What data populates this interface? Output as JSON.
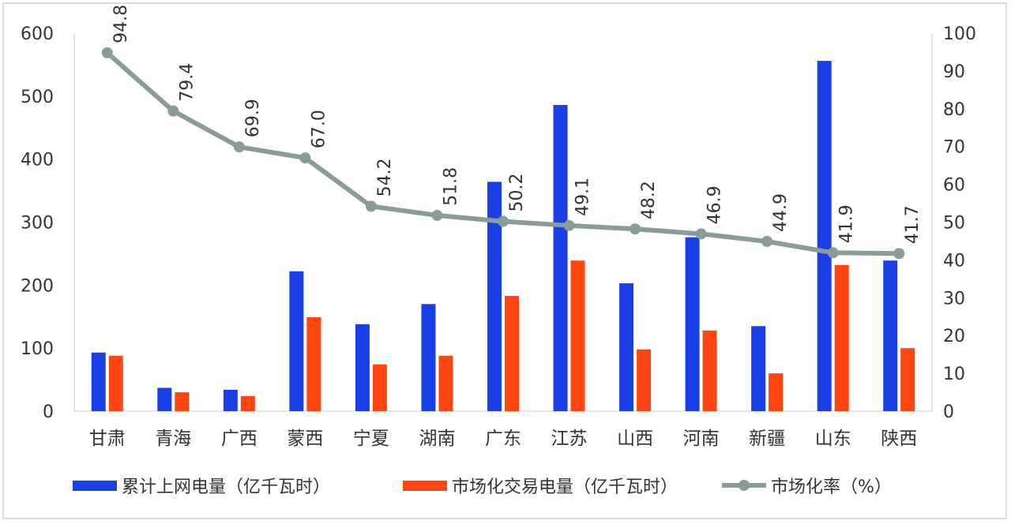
{
  "chart_data": {
    "type": "bar",
    "categories": [
      "甘肃",
      "青海",
      "广西",
      "蒙西",
      "宁夏",
      "湖南",
      "广东",
      "江苏",
      "山西",
      "河南",
      "新疆",
      "山东",
      "陕西"
    ],
    "series": [
      {
        "name": "累计上网电量（亿千瓦时）",
        "type": "bar",
        "axis": "left",
        "color": "#1a3fe6",
        "values": [
          93,
          37,
          34,
          222,
          138,
          170,
          364,
          486,
          203,
          276,
          135,
          556,
          239
        ]
      },
      {
        "name": "市场化交易电量（亿千瓦时）",
        "type": "bar",
        "axis": "left",
        "color": "#ff4512",
        "values": [
          88,
          30,
          24,
          149,
          74,
          88,
          183,
          239,
          98,
          128,
          60,
          232,
          100
        ]
      },
      {
        "name": "市场化率（%）",
        "type": "line",
        "axis": "right",
        "color": "#8a9c9a",
        "values": [
          94.8,
          79.4,
          69.9,
          67.0,
          54.2,
          51.8,
          50.2,
          49.1,
          48.2,
          46.9,
          44.9,
          41.9,
          41.7
        ],
        "labels": [
          "94.8",
          "79.4",
          "69.9",
          "67.0",
          "54.2",
          "51.8",
          "50.2",
          "49.1",
          "48.2",
          "46.9",
          "44.9",
          "41.9",
          "41.7"
        ]
      }
    ],
    "ylim_left": [
      0,
      600
    ],
    "yticks_left": [
      "0",
      "100",
      "200",
      "300",
      "400",
      "500",
      "600"
    ],
    "ylim_right": [
      0,
      100
    ],
    "yticks_right": [
      "0",
      "10",
      "20",
      "30",
      "40",
      "50",
      "60",
      "70",
      "80",
      "90",
      "100"
    ],
    "grid": false,
    "legend": "bottom",
    "legend_labels": [
      "累计上网电量（亿千瓦时）",
      "市场化交易电量（亿千瓦时）",
      "市场化率（%）"
    ]
  }
}
